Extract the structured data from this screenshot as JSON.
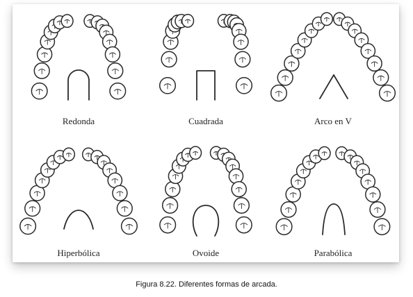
{
  "figure": {
    "caption": "Figura 8.22. Diferentes formas de arcada.",
    "arches": [
      {
        "label": "Redonda",
        "shape": "round"
      },
      {
        "label": "Cuadrada",
        "shape": "square"
      },
      {
        "label": "Arco en V",
        "shape": "v"
      },
      {
        "label": "Hiperbólica",
        "shape": "hyperbolic"
      },
      {
        "label": "Ovoide",
        "shape": "ovoid"
      },
      {
        "label": "Parabólica",
        "shape": "parabolic"
      }
    ]
  },
  "colors": {
    "stroke": "#2a2a2a",
    "tooth_fill": "#ffffff"
  }
}
